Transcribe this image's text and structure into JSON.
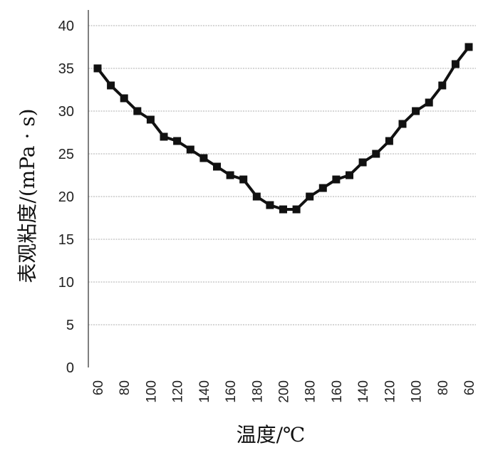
{
  "chart_data": {
    "type": "line",
    "xlabel": "温度/℃",
    "ylabel": "表观粘度/(mPa · s)",
    "ylim": [
      0,
      40
    ],
    "yticks": [
      0,
      5,
      10,
      15,
      20,
      25,
      30,
      35,
      40
    ],
    "grid": true,
    "x_tick_labels": [
      "60",
      "80",
      "100",
      "120",
      "140",
      "160",
      "180",
      "200",
      "180",
      "160",
      "140",
      "120",
      "100",
      "80",
      "60"
    ],
    "x_points": 29,
    "series": [
      {
        "values": [
          35,
          33,
          31.5,
          30,
          29,
          27,
          26.5,
          25.5,
          24.5,
          23.5,
          22.5,
          22,
          20,
          19,
          18.5,
          18.5,
          20,
          21,
          22,
          22.5,
          24,
          25,
          26.5,
          28.5,
          30,
          31,
          33,
          35.5,
          37.5
        ],
        "color": "#111111",
        "marker": "square"
      }
    ]
  }
}
